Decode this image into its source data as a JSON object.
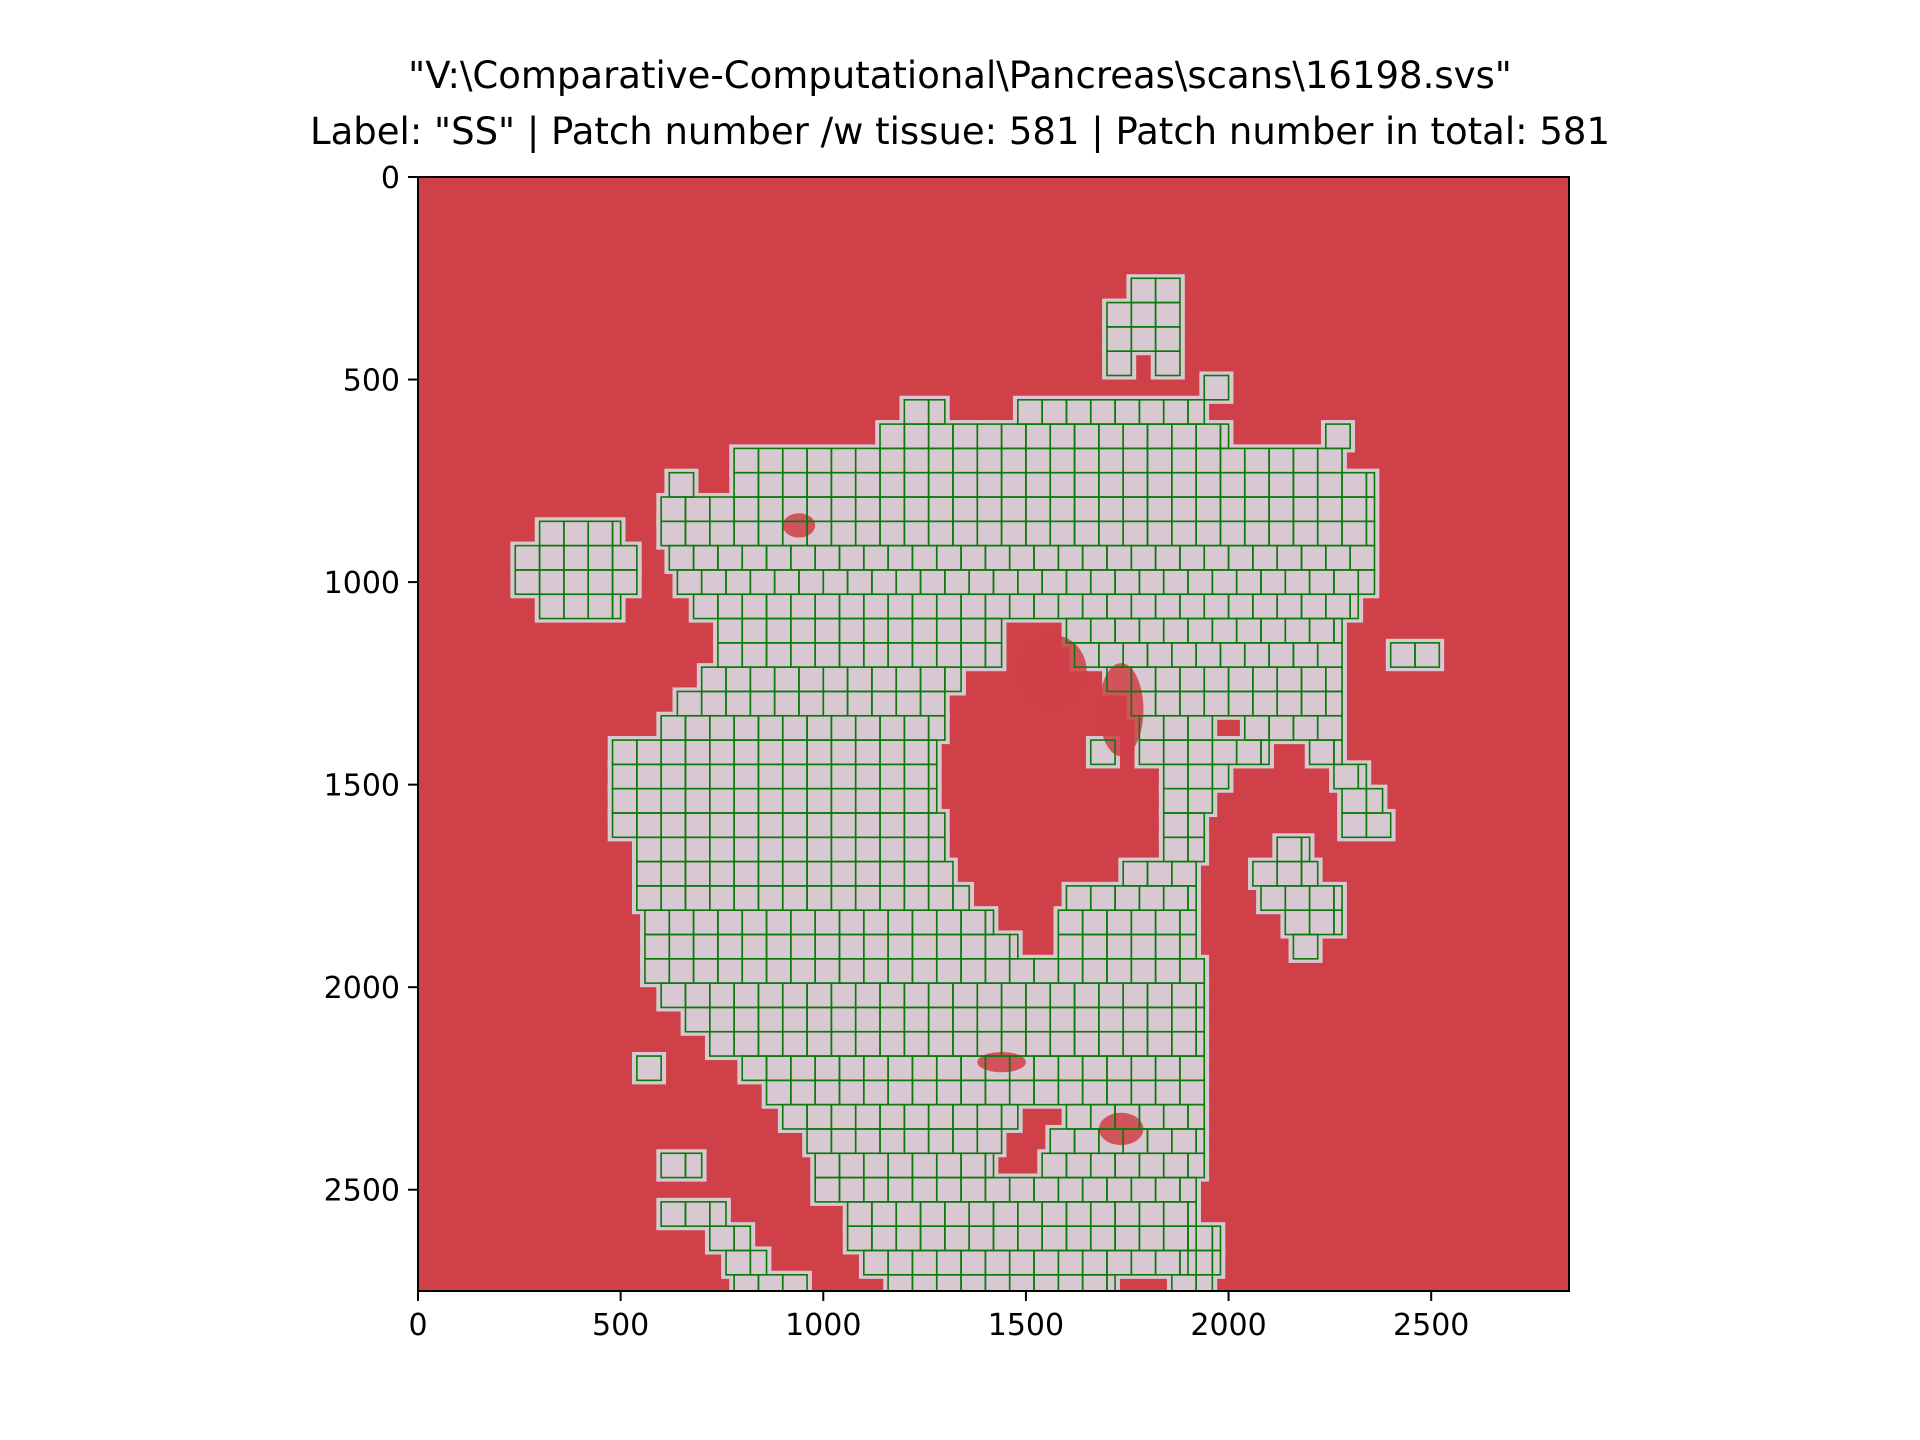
{
  "chart_data": {
    "type": "image",
    "title": "\"V:\\Comparative-Computational\\Pancreas\\scans\\16198.svs\"",
    "subtitle": "Label: \"SS\" | Patch number /w tissue: 581 | Patch number in total: 581",
    "xlabel": "",
    "ylabel": "",
    "xlim": [
      0,
      2840
    ],
    "ylim": [
      2750,
      0
    ],
    "x_ticks": [
      "0",
      "500",
      "1000",
      "1500",
      "2000",
      "2500"
    ],
    "y_ticks": [
      "0",
      "500",
      "1000",
      "1500",
      "2000",
      "2500"
    ],
    "grid": false,
    "patch_size": 60,
    "background_color": "#d04048",
    "tissue_color": "#d8c8d2",
    "patch_edge_color": "#0a7a0a",
    "patches_with_tissue": 581,
    "patches_total": 581
  }
}
